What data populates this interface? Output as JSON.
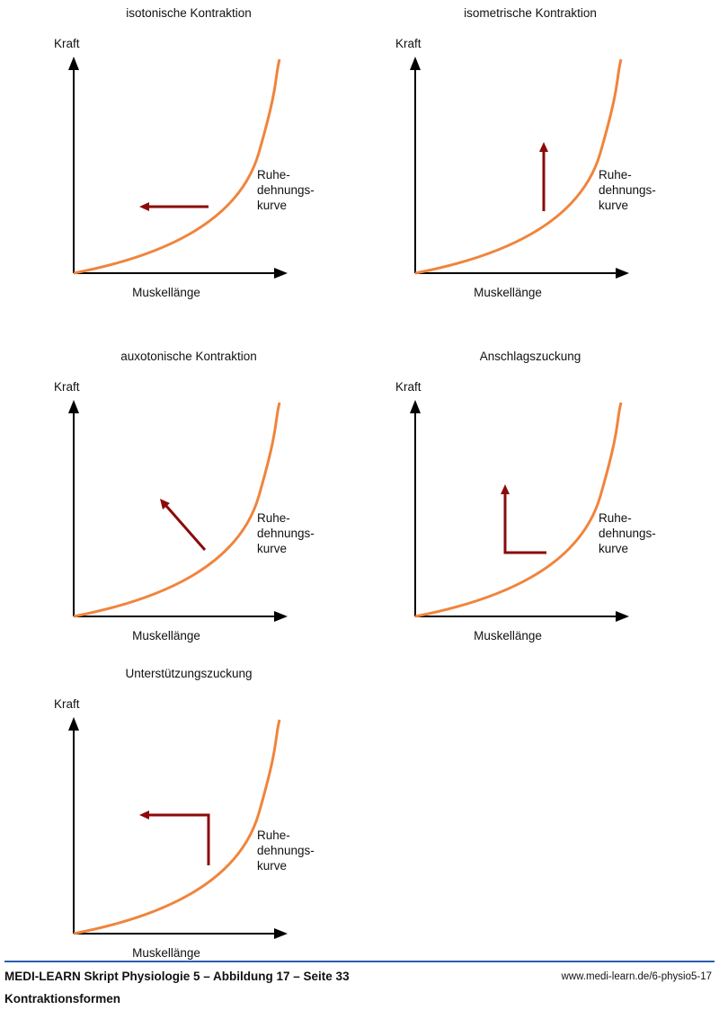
{
  "labels": {
    "y_axis": "Kraft",
    "x_axis": "Muskellänge",
    "curve_line1": "Ruhe-",
    "curve_line2": "dehnungs-",
    "curve_line3": "kurve"
  },
  "panels": [
    {
      "title": "isotonische Kontraktion",
      "arrow": "horizontal-left"
    },
    {
      "title": "isometrische Kontraktion",
      "arrow": "vertical-up"
    },
    {
      "title": "auxotonische Kontraktion",
      "arrow": "diagonal-up-left"
    },
    {
      "title": "Anschlagszuckung",
      "arrow": "left-then-up"
    },
    {
      "title": "Unterstützungszuckung",
      "arrow": "up-then-left"
    }
  ],
  "colors": {
    "curve": "#f0843c",
    "arrow": "#8b0a0a",
    "axis": "#000000",
    "footer_rule": "#2a5db0"
  },
  "footer": {
    "title": "MEDI-LEARN Skript Physiologie 5 – Abbildung 17 – Seite 33",
    "subtitle": "Kontraktionsformen",
    "url": "www.medi-learn.de/6-physio5-17"
  }
}
